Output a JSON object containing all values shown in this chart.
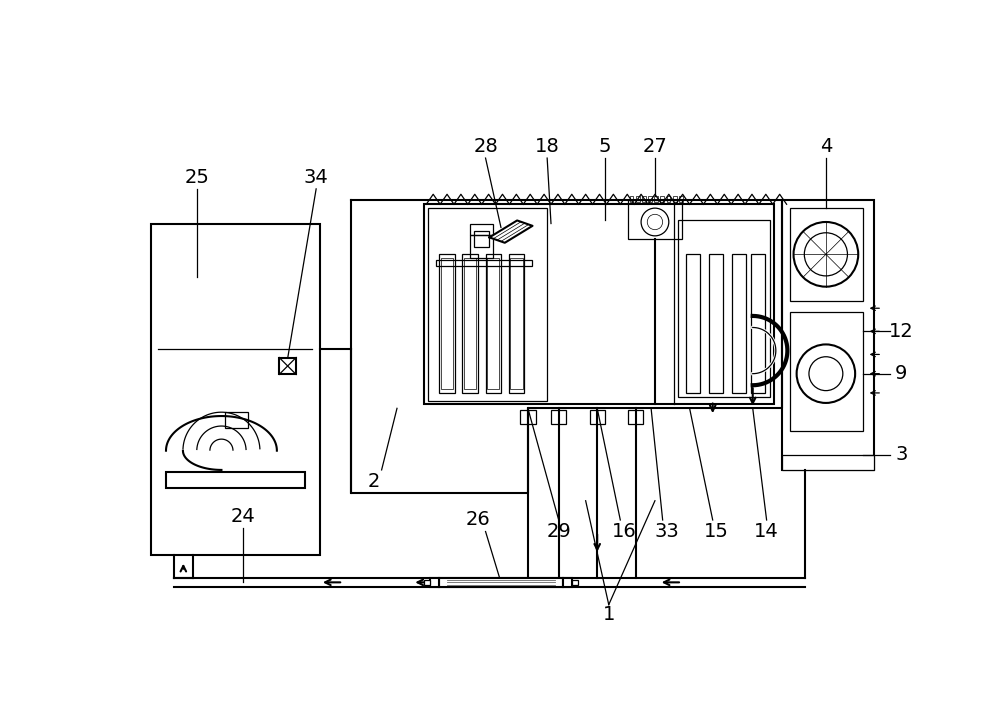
{
  "bg_color": "#ffffff",
  "lc": "#000000",
  "lw": 1.5,
  "tlw": 0.9,
  "fig_w": 10.0,
  "fig_h": 7.27,
  "dpi": 100
}
